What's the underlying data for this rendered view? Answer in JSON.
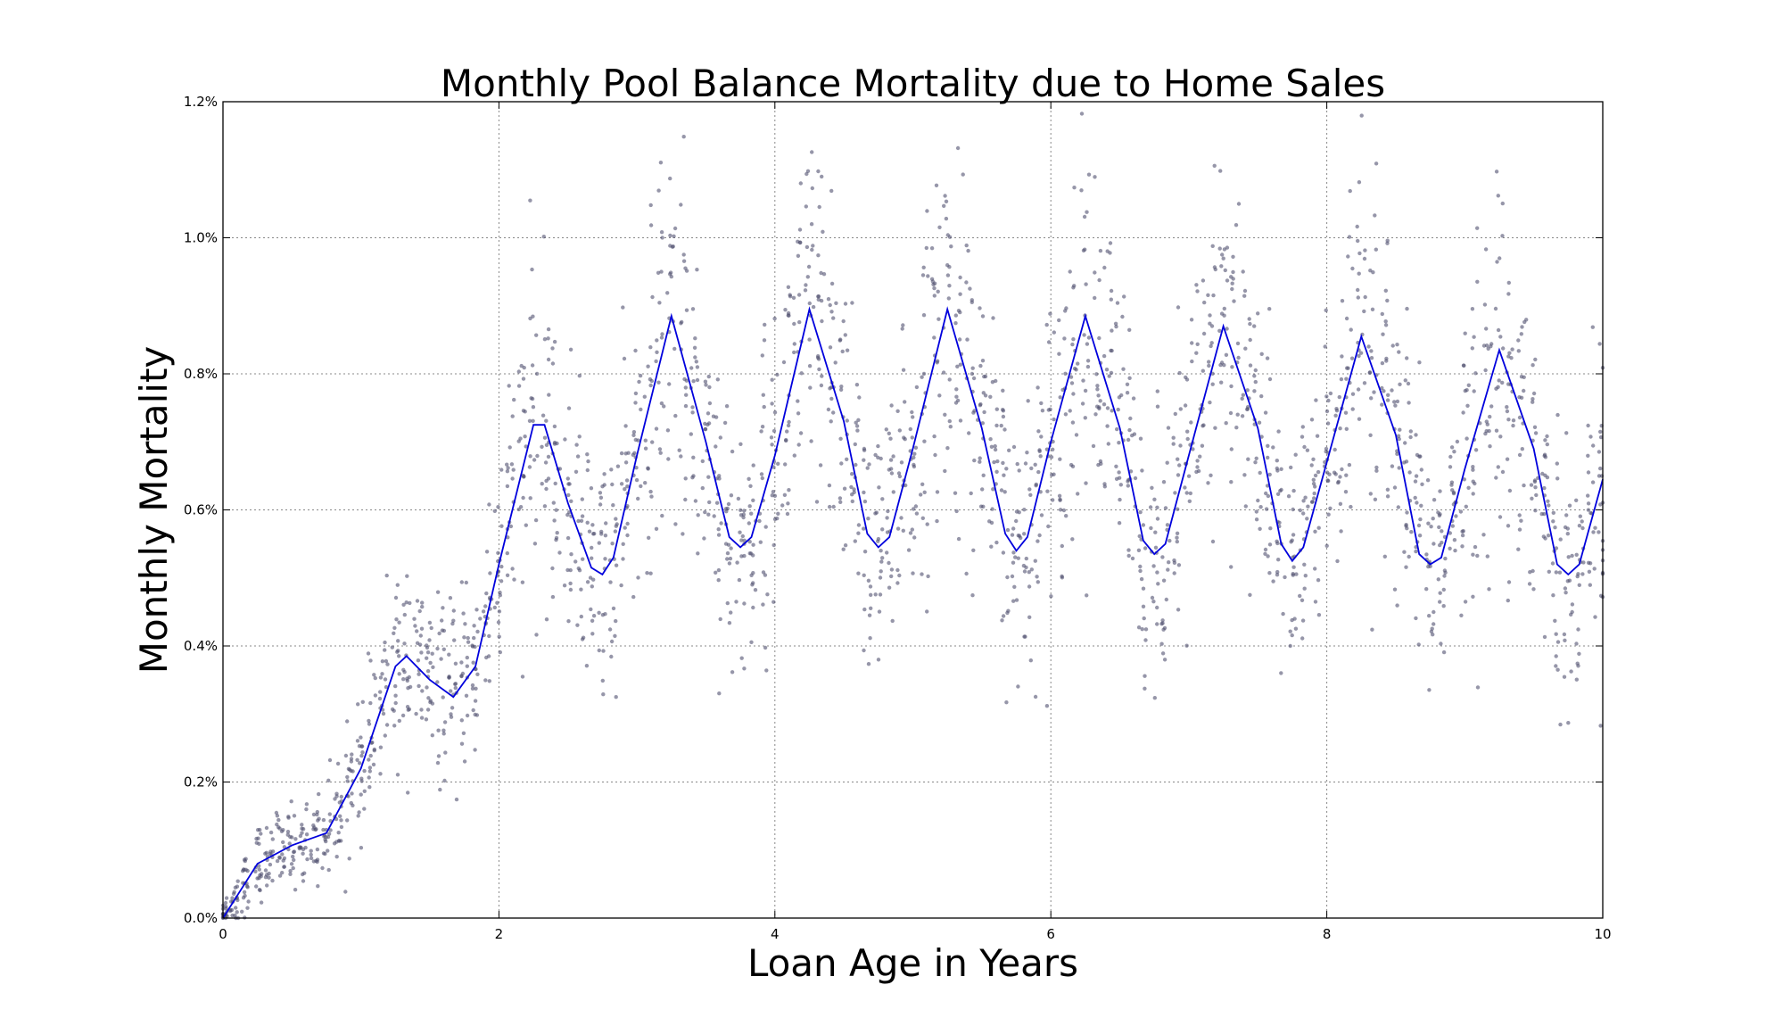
{
  "chart_data": {
    "type": "scatter",
    "title": "Monthly Pool Balance Mortality due to Home Sales",
    "xlabel": "Loan Age in Years",
    "ylabel": "Monthly Mortality",
    "xlim": [
      0,
      10
    ],
    "ylim": [
      0,
      1.2
    ],
    "x_ticks": [
      0,
      2,
      4,
      6,
      8,
      10
    ],
    "x_tick_labels": [
      "0",
      "2",
      "4",
      "6",
      "8",
      "10"
    ],
    "y_ticks": [
      0,
      0.2,
      0.4,
      0.6,
      0.8,
      1.0,
      1.2
    ],
    "y_tick_labels": [
      "0.0%",
      "0.2%",
      "0.4%",
      "0.6%",
      "0.8%",
      "1.0%",
      "1.2%"
    ],
    "grid": true,
    "colors": {
      "scatter": "#505070",
      "line": "#0000dd",
      "grid": "#888888"
    },
    "series": [
      {
        "type": "line",
        "x": [
          0,
          0.25,
          0.5,
          0.75,
          1.0,
          1.25,
          1.33,
          1.5,
          1.67,
          1.83,
          2.0,
          2.25,
          2.33,
          2.5,
          2.67,
          2.75,
          2.83,
          3.0,
          3.25,
          3.5,
          3.67,
          3.75,
          3.83,
          4.0,
          4.25,
          4.5,
          4.67,
          4.75,
          4.83,
          5.0,
          5.25,
          5.5,
          5.67,
          5.75,
          5.83,
          6.0,
          6.25,
          6.5,
          6.67,
          6.75,
          6.83,
          7.0,
          7.25,
          7.5,
          7.67,
          7.75,
          7.83,
          8.0,
          8.25,
          8.5,
          8.67,
          8.75,
          8.83,
          9.0,
          9.25,
          9.5,
          9.67,
          9.75,
          9.83,
          10.0
        ],
        "y": [
          0.0,
          0.08,
          0.107,
          0.125,
          0.22,
          0.37,
          0.385,
          0.35,
          0.325,
          0.37,
          0.52,
          0.725,
          0.725,
          0.61,
          0.515,
          0.505,
          0.53,
          0.68,
          0.885,
          0.7,
          0.56,
          0.545,
          0.56,
          0.68,
          0.895,
          0.73,
          0.565,
          0.545,
          0.56,
          0.69,
          0.895,
          0.72,
          0.565,
          0.54,
          0.56,
          0.7,
          0.885,
          0.72,
          0.555,
          0.535,
          0.55,
          0.68,
          0.87,
          0.72,
          0.55,
          0.525,
          0.545,
          0.67,
          0.855,
          0.71,
          0.535,
          0.52,
          0.53,
          0.66,
          0.835,
          0.69,
          0.52,
          0.505,
          0.52,
          0.645
        ]
      }
    ]
  }
}
